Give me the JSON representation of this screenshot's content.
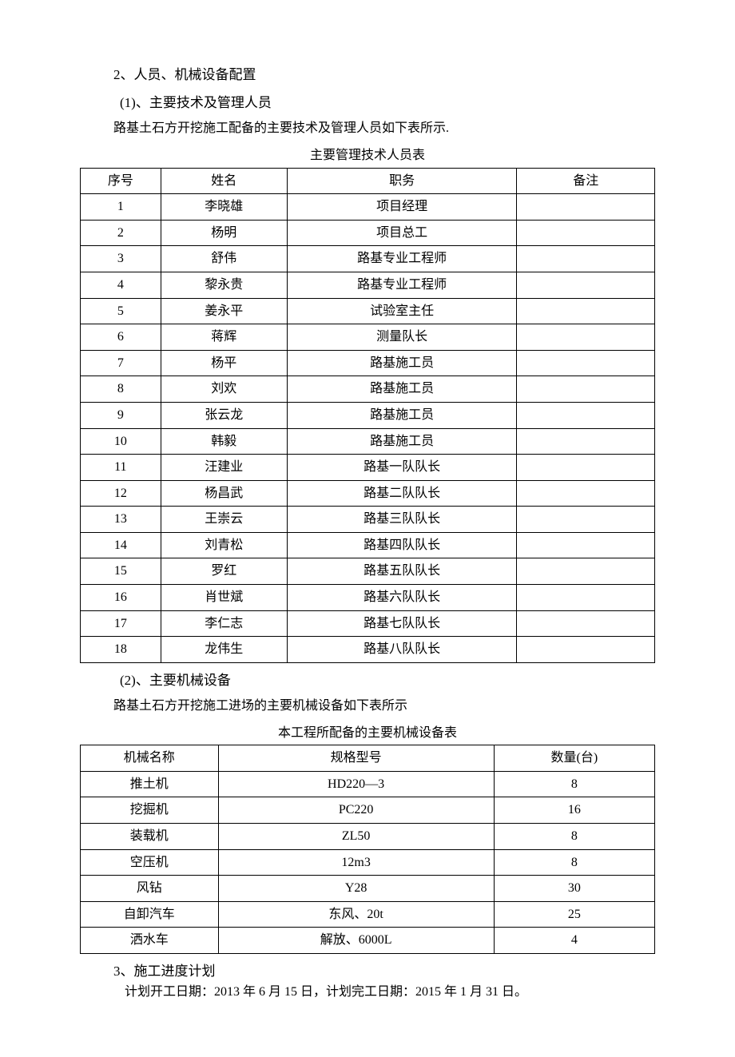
{
  "colors": {
    "text": "#000000",
    "background": "#ffffff",
    "border": "#000000"
  },
  "fonts": {
    "body": {
      "family": "SimSun",
      "size_pt": 12
    }
  },
  "section2": {
    "heading": "2、人员、机械设备配置",
    "sub1": {
      "heading_prefix": "(1)",
      "heading_rest": "、主要技术及管理人员",
      "intro": "路基土石方开挖施工配备的主要技术及管理人员如下表所示.",
      "table_caption": "主要管理技术人员表",
      "columns": [
        "序号",
        "姓名",
        "职务",
        "备注"
      ],
      "rows": [
        [
          "1",
          "李晓雄",
          "项目经理",
          ""
        ],
        [
          "2",
          "杨明",
          "项目总工",
          ""
        ],
        [
          "3",
          "舒伟",
          "路基专业工程师",
          ""
        ],
        [
          "4",
          "黎永贵",
          "路基专业工程师",
          ""
        ],
        [
          "5",
          "姜永平",
          "试验室主任",
          ""
        ],
        [
          "6",
          "蒋辉",
          "测量队长",
          ""
        ],
        [
          "7",
          "杨平",
          "路基施工员",
          ""
        ],
        [
          "8",
          "刘欢",
          "路基施工员",
          ""
        ],
        [
          "9",
          "张云龙",
          "路基施工员",
          ""
        ],
        [
          "10",
          "韩毅",
          "路基施工员",
          ""
        ],
        [
          "11",
          "汪建业",
          "路基一队队长",
          ""
        ],
        [
          "12",
          "杨昌武",
          "路基二队队长",
          ""
        ],
        [
          "13",
          "王崇云",
          "路基三队队长",
          ""
        ],
        [
          "14",
          "刘青松",
          "路基四队队长",
          ""
        ],
        [
          "15",
          "罗红",
          "路基五队队长",
          ""
        ],
        [
          "16",
          "肖世斌",
          "路基六队队长",
          ""
        ],
        [
          "17",
          "李仁志",
          "路基七队队长",
          ""
        ],
        [
          "18",
          "龙伟生",
          "路基八队队长",
          ""
        ]
      ]
    },
    "sub2": {
      "heading_prefix": "(2)",
      "heading_rest": "、主要机械设备",
      "intro": "路基土石方开挖施工进场的主要机械设备如下表所示",
      "table_caption": "本工程所配备的主要机械设备表",
      "columns": [
        "机械名称",
        "规格型号",
        "数量(台)"
      ],
      "rows": [
        [
          "推土机",
          "HD220—3",
          "8"
        ],
        [
          "挖掘机",
          "PC220",
          "16"
        ],
        [
          "装载机",
          "ZL50",
          "8"
        ],
        [
          "空压机",
          "12m3",
          "8"
        ],
        [
          "风钻",
          "Y28",
          "30"
        ],
        [
          "自卸汽车",
          "东风、20t",
          "25"
        ],
        [
          "洒水车",
          "解放、6000L",
          "4"
        ]
      ]
    }
  },
  "section3": {
    "heading": "3、施工进度计划",
    "body": "计划开工日期：2013 年 6 月 15 日，计划完工日期：2015 年 1 月 31 日。"
  }
}
